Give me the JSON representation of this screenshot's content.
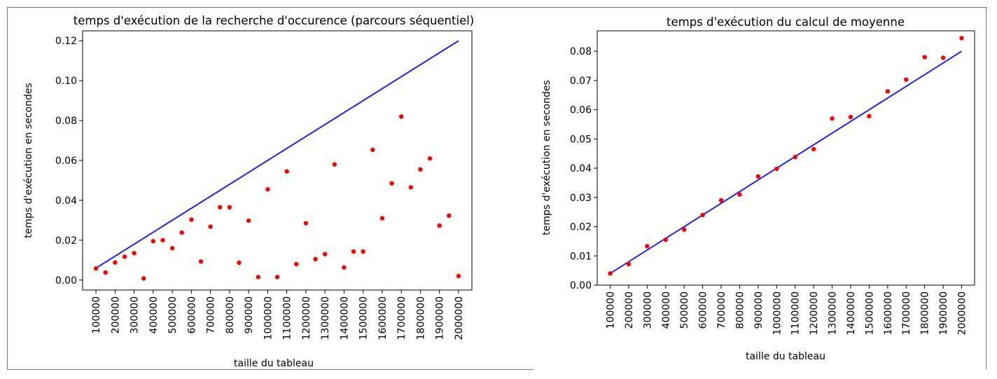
{
  "chart_data": [
    {
      "type": "scatter",
      "title": "temps d'exécution de la recherche d'occurence (parcours séquentiel)",
      "xlabel": "taille du tableau",
      "ylabel": "temps d'exécution en secondes",
      "xlim": [
        30000,
        2070000
      ],
      "ylim": [
        -0.005,
        0.125
      ],
      "grid": false,
      "x_tick_values": [
        100000,
        200000,
        300000,
        400000,
        500000,
        600000,
        700000,
        800000,
        900000,
        1000000,
        1100000,
        1200000,
        1300000,
        1400000,
        1500000,
        1600000,
        1700000,
        1800000,
        1900000,
        2000000
      ],
      "x_tick_labels": [
        "100000",
        "200000",
        "300000",
        "400000",
        "500000",
        "600000",
        "700000",
        "800000",
        "900000",
        "1000000",
        "1100000",
        "1200000",
        "1300000",
        "1400000",
        "1500000",
        "1600000",
        "1700000",
        "1800000",
        "1900000",
        "2000000"
      ],
      "y_tick_values": [
        0.0,
        0.02,
        0.04,
        0.06,
        0.08,
        0.1,
        0.12
      ],
      "y_tick_labels": [
        "0.00",
        "0.02",
        "0.04",
        "0.06",
        "0.08",
        "0.10",
        "0.12"
      ],
      "points": {
        "color": "#ff0000",
        "x": [
          100000,
          150000,
          200000,
          250000,
          300000,
          350000,
          400000,
          450000,
          500000,
          550000,
          600000,
          650000,
          700000,
          750000,
          800000,
          850000,
          900000,
          950000,
          1000000,
          1050000,
          1100000,
          1150000,
          1200000,
          1250000,
          1300000,
          1350000,
          1400000,
          1450000,
          1500000,
          1550000,
          1600000,
          1650000,
          1700000,
          1750000,
          1800000,
          1850000,
          1900000,
          1950000,
          2000000
        ],
        "y": [
          0.0058,
          0.0038,
          0.0088,
          0.0117,
          0.0135,
          0.0008,
          0.0195,
          0.02,
          0.016,
          0.0238,
          0.0303,
          0.0093,
          0.0268,
          0.0365,
          0.0365,
          0.0087,
          0.0298,
          0.0015,
          0.0455,
          0.0015,
          0.0545,
          0.008,
          0.0285,
          0.0105,
          0.013,
          0.058,
          0.0063,
          0.0143,
          0.0143,
          0.0653,
          0.031,
          0.0485,
          0.082,
          0.0465,
          0.0555,
          0.061,
          0.0273,
          0.0323,
          0.002
        ]
      },
      "line": {
        "color": "#1f1fff",
        "x": [
          100000,
          2000000
        ],
        "y": [
          0.006,
          0.12
        ]
      }
    },
    {
      "type": "scatter",
      "title": "temps d'exécution du calcul de moyenne",
      "xlabel": "taille du tableau",
      "ylabel": "temps d'exécution en secondes",
      "xlim": [
        30000,
        2070000
      ],
      "ylim": [
        0.0,
        0.087
      ],
      "grid": false,
      "x_tick_values": [
        100000,
        200000,
        300000,
        400000,
        500000,
        600000,
        700000,
        800000,
        900000,
        1000000,
        1100000,
        1200000,
        1300000,
        1400000,
        1500000,
        1600000,
        1700000,
        1800000,
        1900000,
        2000000
      ],
      "x_tick_labels": [
        "100000",
        "200000",
        "300000",
        "400000",
        "500000",
        "600000",
        "700000",
        "800000",
        "900000",
        "1000000",
        "1100000",
        "1200000",
        "1300000",
        "1400000",
        "1500000",
        "1600000",
        "1700000",
        "1800000",
        "1900000",
        "2000000"
      ],
      "y_tick_values": [
        0.0,
        0.01,
        0.02,
        0.03,
        0.04,
        0.05,
        0.06,
        0.07,
        0.08
      ],
      "y_tick_labels": [
        "0.00",
        "0.01",
        "0.02",
        "0.03",
        "0.04",
        "0.05",
        "0.06",
        "0.07",
        "0.08"
      ],
      "points": {
        "color": "#ff0000",
        "x": [
          100000,
          200000,
          300000,
          400000,
          500000,
          600000,
          700000,
          800000,
          900000,
          1000000,
          1100000,
          1200000,
          1300000,
          1400000,
          1500000,
          1600000,
          1700000,
          1800000,
          1900000,
          2000000
        ],
        "y": [
          0.004,
          0.0072,
          0.0133,
          0.0155,
          0.019,
          0.024,
          0.029,
          0.031,
          0.0372,
          0.0398,
          0.0438,
          0.0465,
          0.057,
          0.0575,
          0.0578,
          0.0663,
          0.0703,
          0.078,
          0.0778,
          0.0845
        ]
      },
      "line": {
        "color": "#1f1fff",
        "x": [
          100000,
          2000000
        ],
        "y": [
          0.004,
          0.08
        ]
      }
    }
  ]
}
